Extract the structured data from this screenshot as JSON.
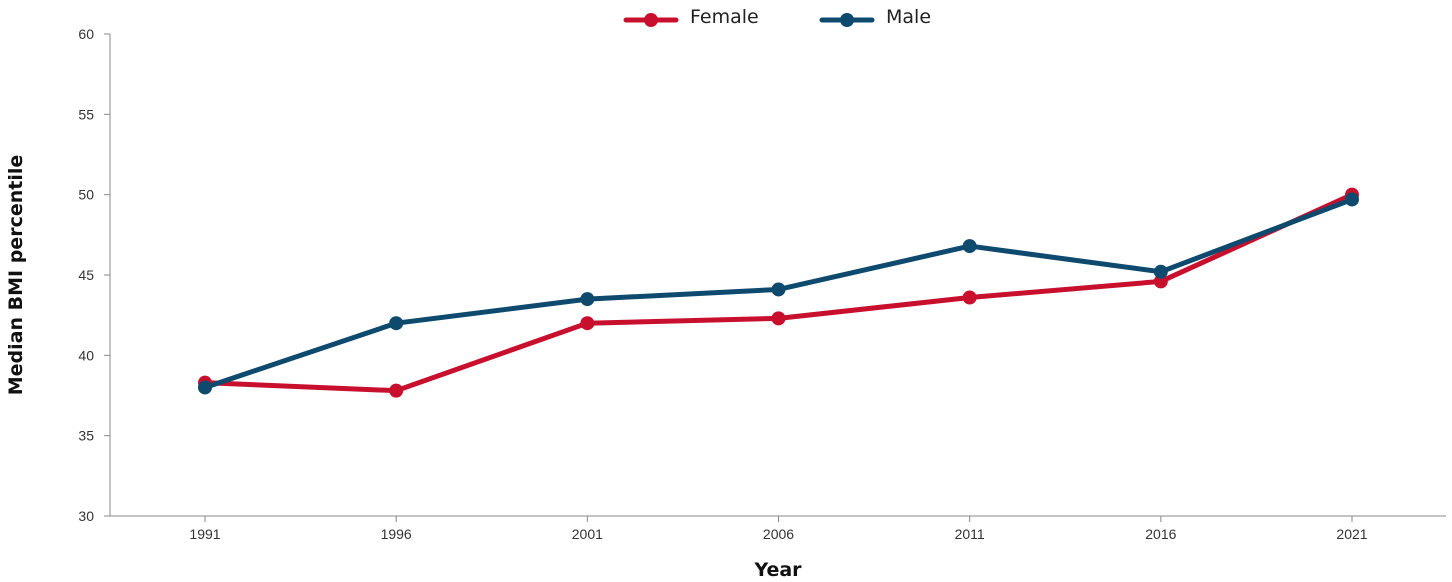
{
  "chart_data": {
    "type": "line",
    "title": "",
    "xlabel": "Year",
    "ylabel": "Median BMI percentile",
    "categories": [
      "1991",
      "1996",
      "2001",
      "2006",
      "2011",
      "2016",
      "2021"
    ],
    "ylim": [
      30,
      60
    ],
    "yticks": [
      30,
      35,
      40,
      45,
      50,
      55,
      60
    ],
    "grid": false,
    "legend_position": "top-center",
    "series": [
      {
        "name": "Female",
        "color": "#c8102e",
        "values": [
          38.3,
          37.8,
          42.0,
          42.3,
          43.6,
          44.6,
          50.0
        ]
      },
      {
        "name": "Male",
        "color": "#0e4a6e",
        "values": [
          38.0,
          42.0,
          43.5,
          44.1,
          46.8,
          45.2,
          49.7
        ]
      }
    ]
  }
}
